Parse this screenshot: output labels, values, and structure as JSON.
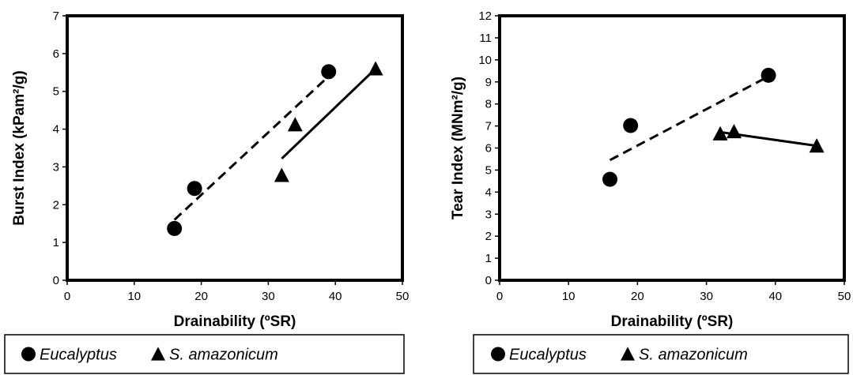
{
  "chart_data": [
    {
      "type": "scatter",
      "xlabel": "Drainability (ºSR)",
      "ylabel": "Burst Index (kPam²/g)",
      "xlim": [
        0,
        50
      ],
      "ylim": [
        0,
        7
      ],
      "xticks": [
        0,
        10,
        20,
        30,
        40,
        50
      ],
      "yticks": [
        0,
        1,
        2,
        3,
        4,
        5,
        6,
        7
      ],
      "grid": false,
      "legend_position": "bottom",
      "series": [
        {
          "name": "Eucalyptus",
          "marker": "circle",
          "label_style": "italic",
          "x": [
            16,
            19,
            39
          ],
          "y": [
            1.37,
            2.43,
            5.52
          ],
          "trendline": {
            "style": "dashed",
            "x": [
              16,
              39
            ],
            "y": [
              1.6,
              5.4
            ]
          }
        },
        {
          "name": "S. amazonicum",
          "marker": "triangle",
          "label_style": "italic",
          "x": [
            32,
            34,
            46
          ],
          "y": [
            2.78,
            4.12,
            5.6
          ],
          "trendline": {
            "style": "solid",
            "x": [
              32,
              46
            ],
            "y": [
              3.22,
              5.6
            ]
          }
        }
      ]
    },
    {
      "type": "scatter",
      "xlabel": "Drainability (ºSR)",
      "ylabel": "Tear Index  (MNm²/g)",
      "xlim": [
        0,
        50
      ],
      "ylim": [
        0,
        12
      ],
      "xticks": [
        0,
        10,
        20,
        30,
        40,
        50
      ],
      "yticks": [
        0,
        1,
        2,
        3,
        4,
        5,
        6,
        7,
        8,
        9,
        10,
        11,
        12
      ],
      "grid": false,
      "legend_position": "bottom",
      "series": [
        {
          "name": "Eucalyptus",
          "marker": "circle",
          "label_style": "italic",
          "x": [
            16,
            19,
            39
          ],
          "y": [
            4.58,
            7.02,
            9.3
          ],
          "trendline": {
            "style": "dashed",
            "x": [
              16,
              39
            ],
            "y": [
              5.45,
              9.25
            ]
          }
        },
        {
          "name": "S. amazonicum",
          "marker": "triangle",
          "label_style": "italic",
          "x": [
            32,
            34,
            46
          ],
          "y": [
            6.65,
            6.75,
            6.1
          ],
          "trendline": {
            "style": "solid",
            "x": [
              32,
              46
            ],
            "y": [
              6.72,
              6.1
            ]
          }
        }
      ]
    }
  ]
}
